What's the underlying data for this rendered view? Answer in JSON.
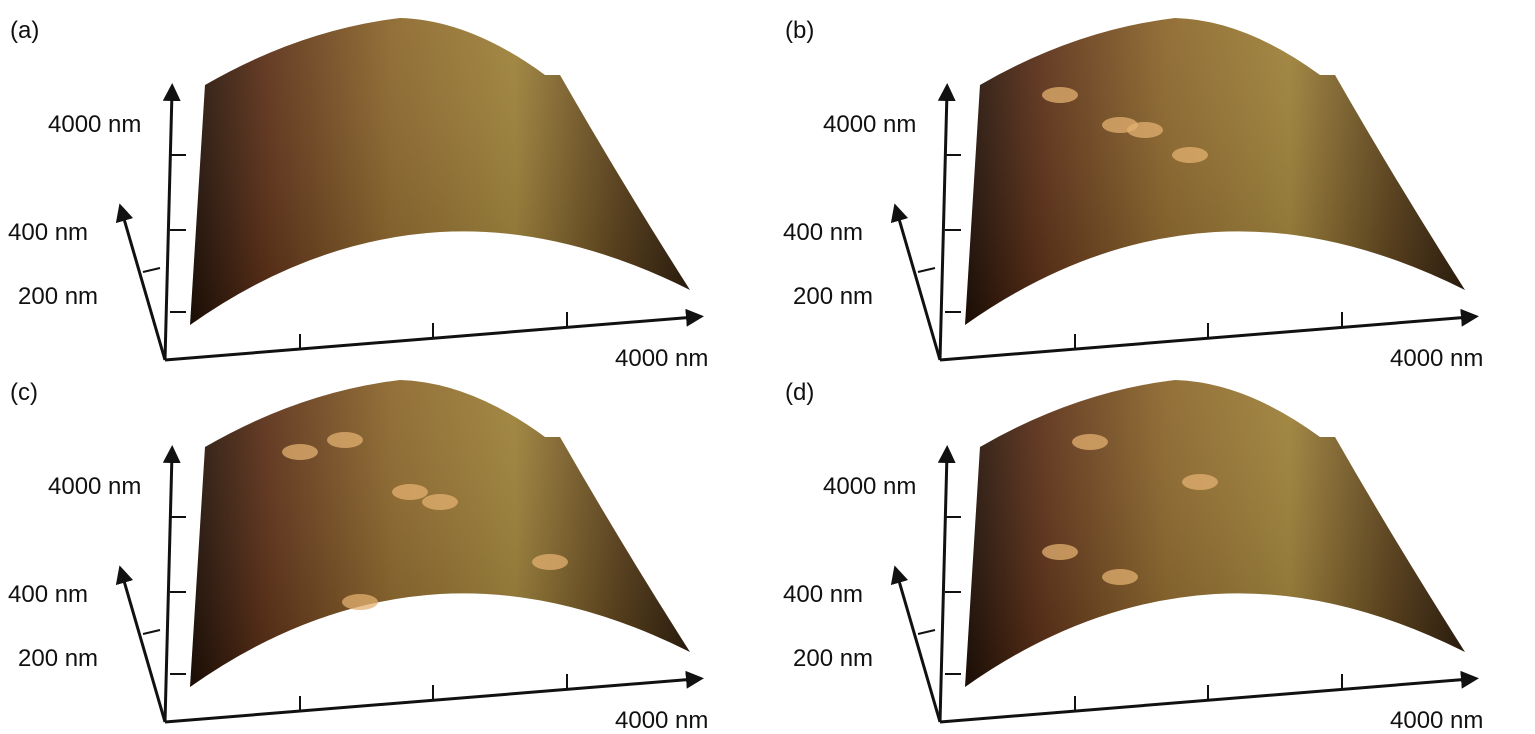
{
  "panels": [
    {
      "label": "(a)",
      "vertical_label": "4000 nm",
      "depth_labels": [
        "400 nm",
        "200 nm"
      ],
      "x_label": "4000 nm"
    },
    {
      "label": "(b)",
      "vertical_label": "4000 nm",
      "depth_labels": [
        "400 nm",
        "200 nm"
      ],
      "x_label": "4000 nm"
    },
    {
      "label": "(c)",
      "vertical_label": "4000 nm",
      "depth_labels": [
        "400 nm",
        "200 nm"
      ],
      "x_label": "4000 nm"
    },
    {
      "label": "(d)",
      "vertical_label": "4000 nm",
      "depth_labels": [
        "400 nm",
        "200 nm"
      ],
      "x_label": "4000 nm"
    }
  ]
}
